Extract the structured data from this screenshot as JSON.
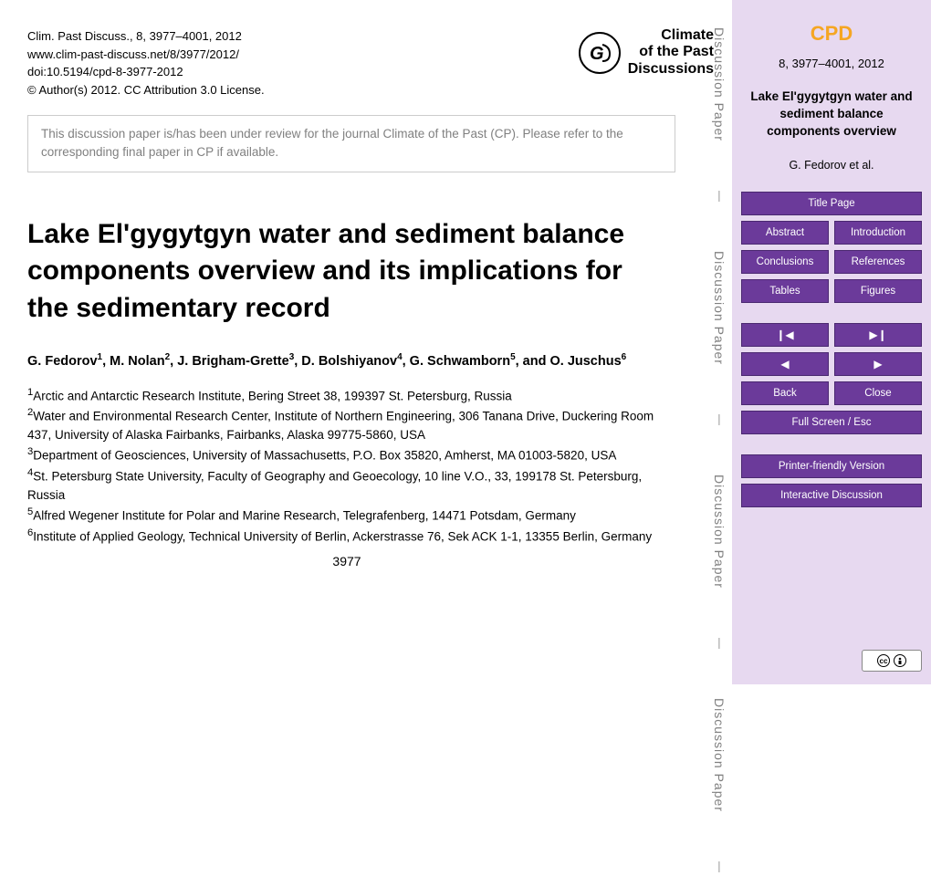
{
  "meta": {
    "citation": "Clim. Past Discuss., 8, 3977–4001, 2012",
    "url": "www.clim-past-discuss.net/8/3977/2012/",
    "doi": "doi:10.5194/cpd-8-3977-2012",
    "copyright": "© Author(s) 2012. CC Attribution 3.0 License."
  },
  "journal": {
    "line1": "Climate",
    "line2": "of the Past",
    "line3": "Discussions"
  },
  "review_notice": "This discussion paper is/has been under review for the journal Climate of the Past (CP). Please refer to the corresponding final paper in CP if available.",
  "title": "Lake El'gygytgyn water and sediment balance components overview and its implications for the sedimentary record",
  "authors_html": "G. Fedorov<sup>1</sup>, M. Nolan<sup>2</sup>, J. Brigham-Grette<sup>3</sup>, D. Bolshiyanov<sup>4</sup>, G. Schwamborn<sup>5</sup>, and O. Juschus<sup>6</sup>",
  "affiliations": [
    "<sup>1</sup>Arctic and Antarctic Research Institute, Bering Street 38, 199397 St. Petersburg, Russia",
    "<sup>2</sup>Water and Environmental Research Center, Institute of Northern Engineering, 306 Tanana Drive, Duckering Room 437, University of Alaska Fairbanks, Fairbanks, Alaska 99775-5860, USA",
    "<sup>3</sup>Department of Geosciences, University of Massachusetts, P.O. Box 35820, Amherst, MA 01003-5820, USA",
    "<sup>4</sup>St. Petersburg State University, Faculty of Geography and Geoecology, 10 line V.O., 33, 199178 St. Petersburg, Russia",
    "<sup>5</sup>Alfred Wegener Institute for Polar and Marine Research, Telegrafenberg, 14471 Potsdam, Germany",
    "<sup>6</sup>Institute of Applied Geology, Technical University of Berlin, Ackerstrasse 76, Sek ACK 1-1, 13355 Berlin, Germany"
  ],
  "page_number": "3977",
  "side_label": "Discussion Paper",
  "sidebar": {
    "journal_abbrev": "CPD",
    "citation": "8, 3977–4001, 2012",
    "title": "Lake El'gygytgyn water and sediment balance components overview",
    "author": "G. Fedorov et al.",
    "buttons": {
      "title_page": "Title Page",
      "abstract": "Abstract",
      "introduction": "Introduction",
      "conclusions": "Conclusions",
      "references": "References",
      "tables": "Tables",
      "figures": "Figures",
      "first": "❙◀",
      "last": "▶❙",
      "prev": "◀",
      "next": "▶",
      "back": "Back",
      "close": "Close",
      "fullscreen": "Full Screen / Esc",
      "printer": "Printer-friendly Version",
      "interactive": "Interactive Discussion"
    }
  },
  "colors": {
    "sidebar_bg": "#e7d9f0",
    "btn_bg": "#6b3a9a",
    "accent": "#f5a623",
    "grey": "#808080"
  }
}
